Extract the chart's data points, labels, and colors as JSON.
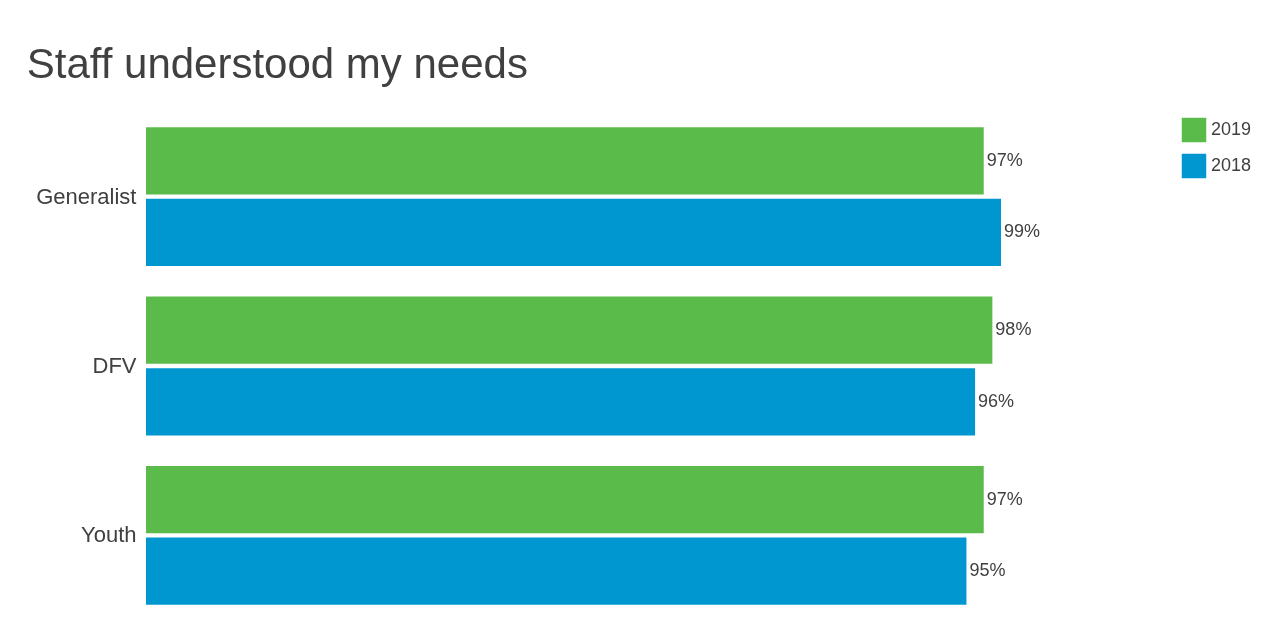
{
  "chart_data": {
    "type": "bar",
    "orientation": "horizontal",
    "title": "Staff understood my needs",
    "categories": [
      "Generalist",
      "DFV",
      "Youth"
    ],
    "series": [
      {
        "name": "2019",
        "color": "#5bbb4a",
        "values": [
          97,
          98,
          97
        ],
        "value_labels": [
          "97%",
          "98%",
          "97%"
        ]
      },
      {
        "name": "2018",
        "color": "#0096d0",
        "values": [
          99,
          96,
          95
        ],
        "value_labels": [
          "99%",
          "96%",
          "95%"
        ]
      }
    ],
    "tick_labels": "y",
    "legend": "right"
  }
}
